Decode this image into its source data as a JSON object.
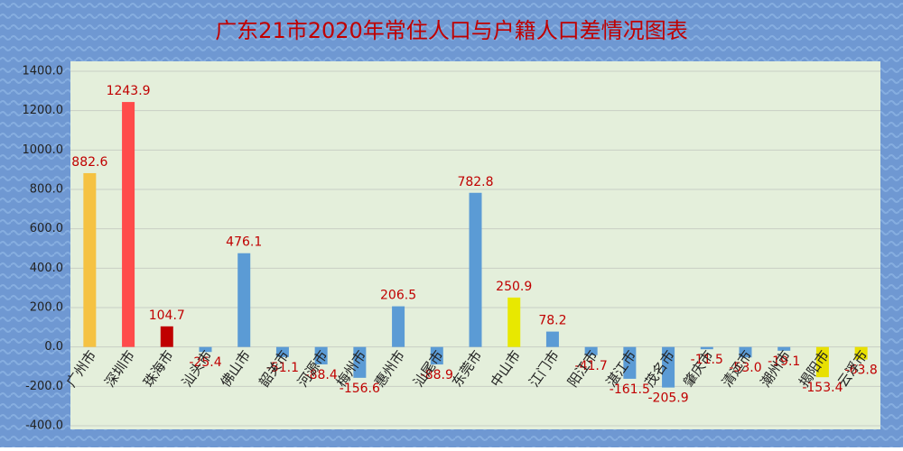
{
  "chart_data": {
    "type": "bar",
    "title": "广东21市2020年常住人口与户籍人口差情况图表",
    "categories": [
      "广州市",
      "深圳市",
      "珠海市",
      "汕头市",
      "佛山市",
      "韶关市",
      "河源市",
      "梅州市",
      "惠州市",
      "汕尾市",
      "东莞市",
      "中山市",
      "江门市",
      "阳江市",
      "湛江市",
      "茂名市",
      "肇庆市",
      "清远市",
      "潮州市",
      "揭阳市",
      "云浮市"
    ],
    "values": [
      882.6,
      1243.9,
      104.7,
      -25.4,
      476.1,
      -51.1,
      -88.4,
      -156.6,
      206.5,
      -88.9,
      782.8,
      250.9,
      78.2,
      -41.7,
      -161.5,
      -205.9,
      -11.5,
      -53.0,
      -19.1,
      -153.4,
      -63.8
    ],
    "value_labels": [
      "882.6",
      "1243.9",
      "104.7",
      "-25.4",
      "476.1",
      "-51.1",
      "-88.4",
      "-156.6",
      "206.5",
      "-88.9",
      "782.8",
      "250.9",
      "78.2",
      "-41.7",
      "-161.5",
      "-205.9",
      "-11.5",
      "-53.0",
      "-19.1",
      "-153.4",
      "-63.8"
    ],
    "colors": [
      "#f5c242",
      "#ff4b4b",
      "#c00000",
      "#5b9bd5",
      "#5b9bd5",
      "#5b9bd5",
      "#5b9bd5",
      "#5b9bd5",
      "#5b9bd5",
      "#5b9bd5",
      "#5b9bd5",
      "#e8e800",
      "#5b9bd5",
      "#5b9bd5",
      "#5b9bd5",
      "#5b9bd5",
      "#5b9bd5",
      "#5b9bd5",
      "#5b9bd5",
      "#e8e000",
      "#e8e000"
    ],
    "ylim": [
      -400,
      1400
    ],
    "yticks": [
      {
        "value": -400,
        "label": "-400.0"
      },
      {
        "value": -200,
        "label": "-200.0"
      },
      {
        "value": 0,
        "label": "0.0"
      },
      {
        "value": 200,
        "label": "200.0"
      },
      {
        "value": 400,
        "label": "400.0"
      },
      {
        "value": 600,
        "label": "600.0"
      },
      {
        "value": 800,
        "label": "800.0"
      },
      {
        "value": 1000,
        "label": "1000.0"
      },
      {
        "value": 1200,
        "label": "1200.0"
      },
      {
        "value": 1400,
        "label": "1400.0"
      }
    ],
    "grid": true
  }
}
